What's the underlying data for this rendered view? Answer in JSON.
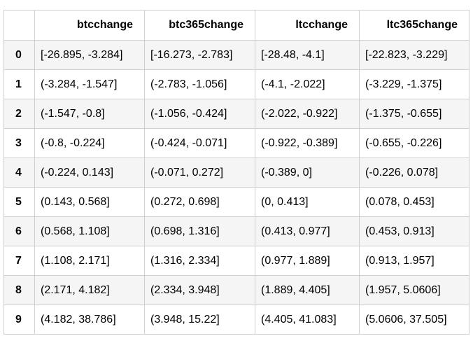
{
  "table": {
    "columns": [
      "",
      "btcchange",
      "btc365change",
      "ltcchange",
      "ltc365change"
    ],
    "rows": [
      {
        "index": "0",
        "cells": [
          "[-26.895, -3.284]",
          "[-16.273, -2.783]",
          "[-28.48, -4.1]",
          "[-22.823, -3.229]"
        ]
      },
      {
        "index": "1",
        "cells": [
          "(-3.284, -1.547]",
          "(-2.783, -1.056]",
          "(-4.1, -2.022]",
          "(-3.229, -1.375]"
        ]
      },
      {
        "index": "2",
        "cells": [
          "(-1.547, -0.8]",
          "(-1.056, -0.424]",
          "(-2.022, -0.922]",
          "(-1.375, -0.655]"
        ]
      },
      {
        "index": "3",
        "cells": [
          "(-0.8, -0.224]",
          "(-0.424, -0.071]",
          "(-0.922, -0.389]",
          "(-0.655, -0.226]"
        ]
      },
      {
        "index": "4",
        "cells": [
          "(-0.224, 0.143]",
          "(-0.071, 0.272]",
          "(-0.389, 0]",
          "(-0.226, 0.078]"
        ]
      },
      {
        "index": "5",
        "cells": [
          "(0.143, 0.568]",
          "(0.272, 0.698]",
          "(0, 0.413]",
          "(0.078, 0.453]"
        ]
      },
      {
        "index": "6",
        "cells": [
          "(0.568, 1.108]",
          "(0.698, 1.316]",
          "(0.413, 0.977]",
          "(0.453, 0.913]"
        ]
      },
      {
        "index": "7",
        "cells": [
          "(1.108, 2.171]",
          "(1.316, 2.334]",
          "(0.977, 1.889]",
          "(0.913, 1.957]"
        ]
      },
      {
        "index": "8",
        "cells": [
          "(2.171, 4.182]",
          "(2.334, 3.948]",
          "(1.889, 4.405]",
          "(1.957, 5.0606]"
        ]
      },
      {
        "index": "9",
        "cells": [
          "(4.182, 38.786]",
          "(3.948, 15.22]",
          "(4.405, 41.083]",
          "(5.0606, 37.505]"
        ]
      }
    ]
  }
}
